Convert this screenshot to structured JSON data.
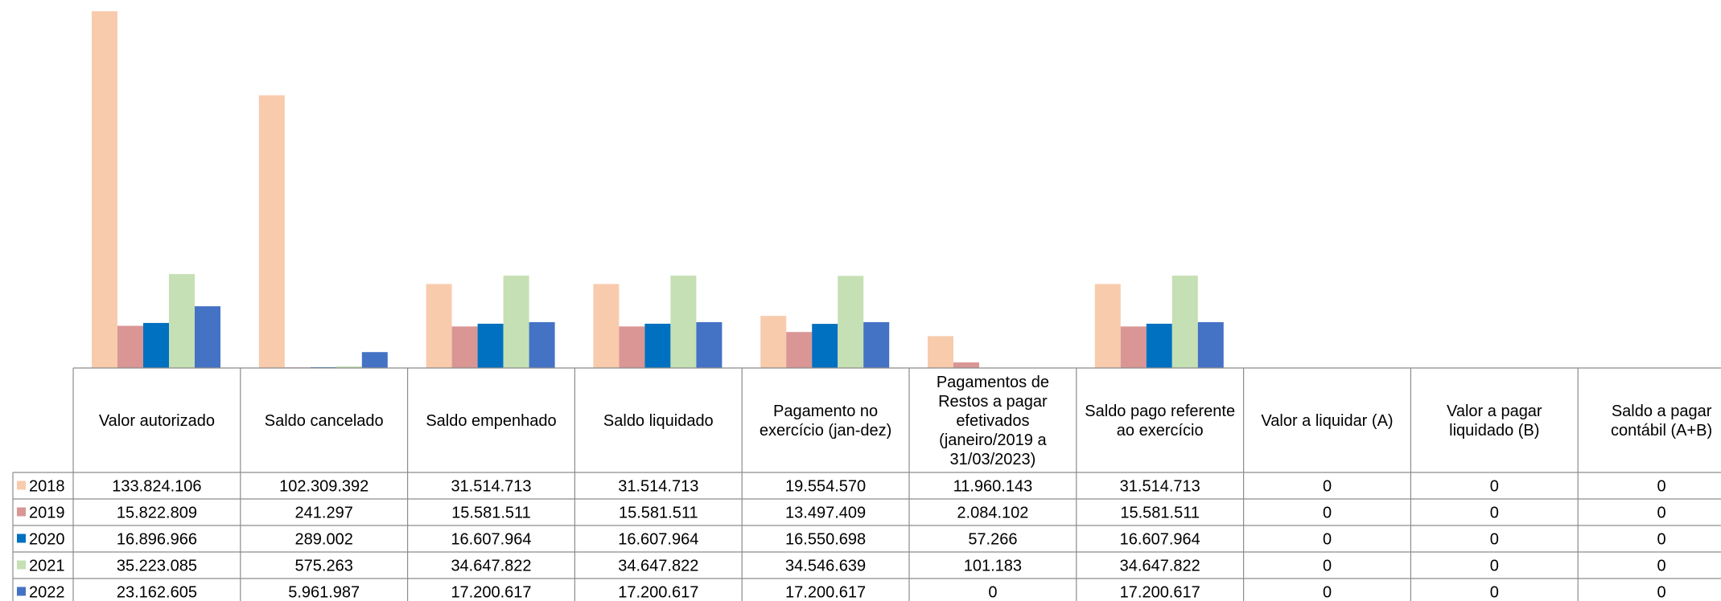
{
  "chart_data": {
    "type": "bar",
    "categories": [
      [
        "Valor autorizado"
      ],
      [
        "Saldo cancelado"
      ],
      [
        "Saldo empenhado"
      ],
      [
        "Saldo liquidado"
      ],
      [
        "Pagamento no",
        "exercício (jan-dez)"
      ],
      [
        "Pagamentos de",
        "Restos a pagar",
        "efetivados",
        "(janeiro/2019 a",
        "31/03/2023)"
      ],
      [
        "Saldo pago referente",
        "ao exercício"
      ],
      [
        "Valor a liquidar (A)"
      ],
      [
        "Valor a pagar",
        "liquidado (B)"
      ],
      [
        "Saldo a pagar",
        "contábil (A+B)"
      ]
    ],
    "series": [
      {
        "name": "2018",
        "color": "#F8CBAD",
        "values": [
          133824106,
          102309392,
          31514713,
          31514713,
          19554570,
          11960143,
          31514713,
          0,
          0,
          0
        ],
        "labels": [
          "133.824.106",
          "102.309.392",
          "31.514.713",
          "31.514.713",
          "19.554.570",
          "11.960.143",
          "31.514.713",
          "0",
          "0",
          "0"
        ]
      },
      {
        "name": "2019",
        "color": "#D99694",
        "values": [
          15822809,
          241297,
          15581511,
          15581511,
          13497409,
          2084102,
          15581511,
          0,
          0,
          0
        ],
        "labels": [
          "15.822.809",
          "241.297",
          "15.581.511",
          "15.581.511",
          "13.497.409",
          "2.084.102",
          "15.581.511",
          "0",
          "0",
          "0"
        ]
      },
      {
        "name": "2020",
        "color": "#0070C0",
        "values": [
          16896966,
          289002,
          16607964,
          16607964,
          16550698,
          57266,
          16607964,
          0,
          0,
          0
        ],
        "labels": [
          "16.896.966",
          "289.002",
          "16.607.964",
          "16.607.964",
          "16.550.698",
          "57.266",
          "16.607.964",
          "0",
          "0",
          "0"
        ]
      },
      {
        "name": "2021",
        "color": "#C5E0B4",
        "values": [
          35223085,
          575263,
          34647822,
          34647822,
          34546639,
          101183,
          34647822,
          0,
          0,
          0
        ],
        "labels": [
          "35.223.085",
          "575.263",
          "34.647.822",
          "34.647.822",
          "34.546.639",
          "101.183",
          "34.647.822",
          "0",
          "0",
          "0"
        ]
      },
      {
        "name": "2022",
        "color": "#4472C4",
        "values": [
          23162605,
          5961987,
          17200617,
          17200617,
          17200617,
          0,
          17200617,
          0,
          0,
          0
        ],
        "labels": [
          "23.162.605",
          "5.961.987",
          "17.200.617",
          "17.200.617",
          "17.200.617",
          "0",
          "17.200.617",
          "0",
          "0",
          "0"
        ]
      }
    ],
    "ylim": [
      0,
      133824106
    ],
    "grid": false,
    "legend": "data-table"
  }
}
